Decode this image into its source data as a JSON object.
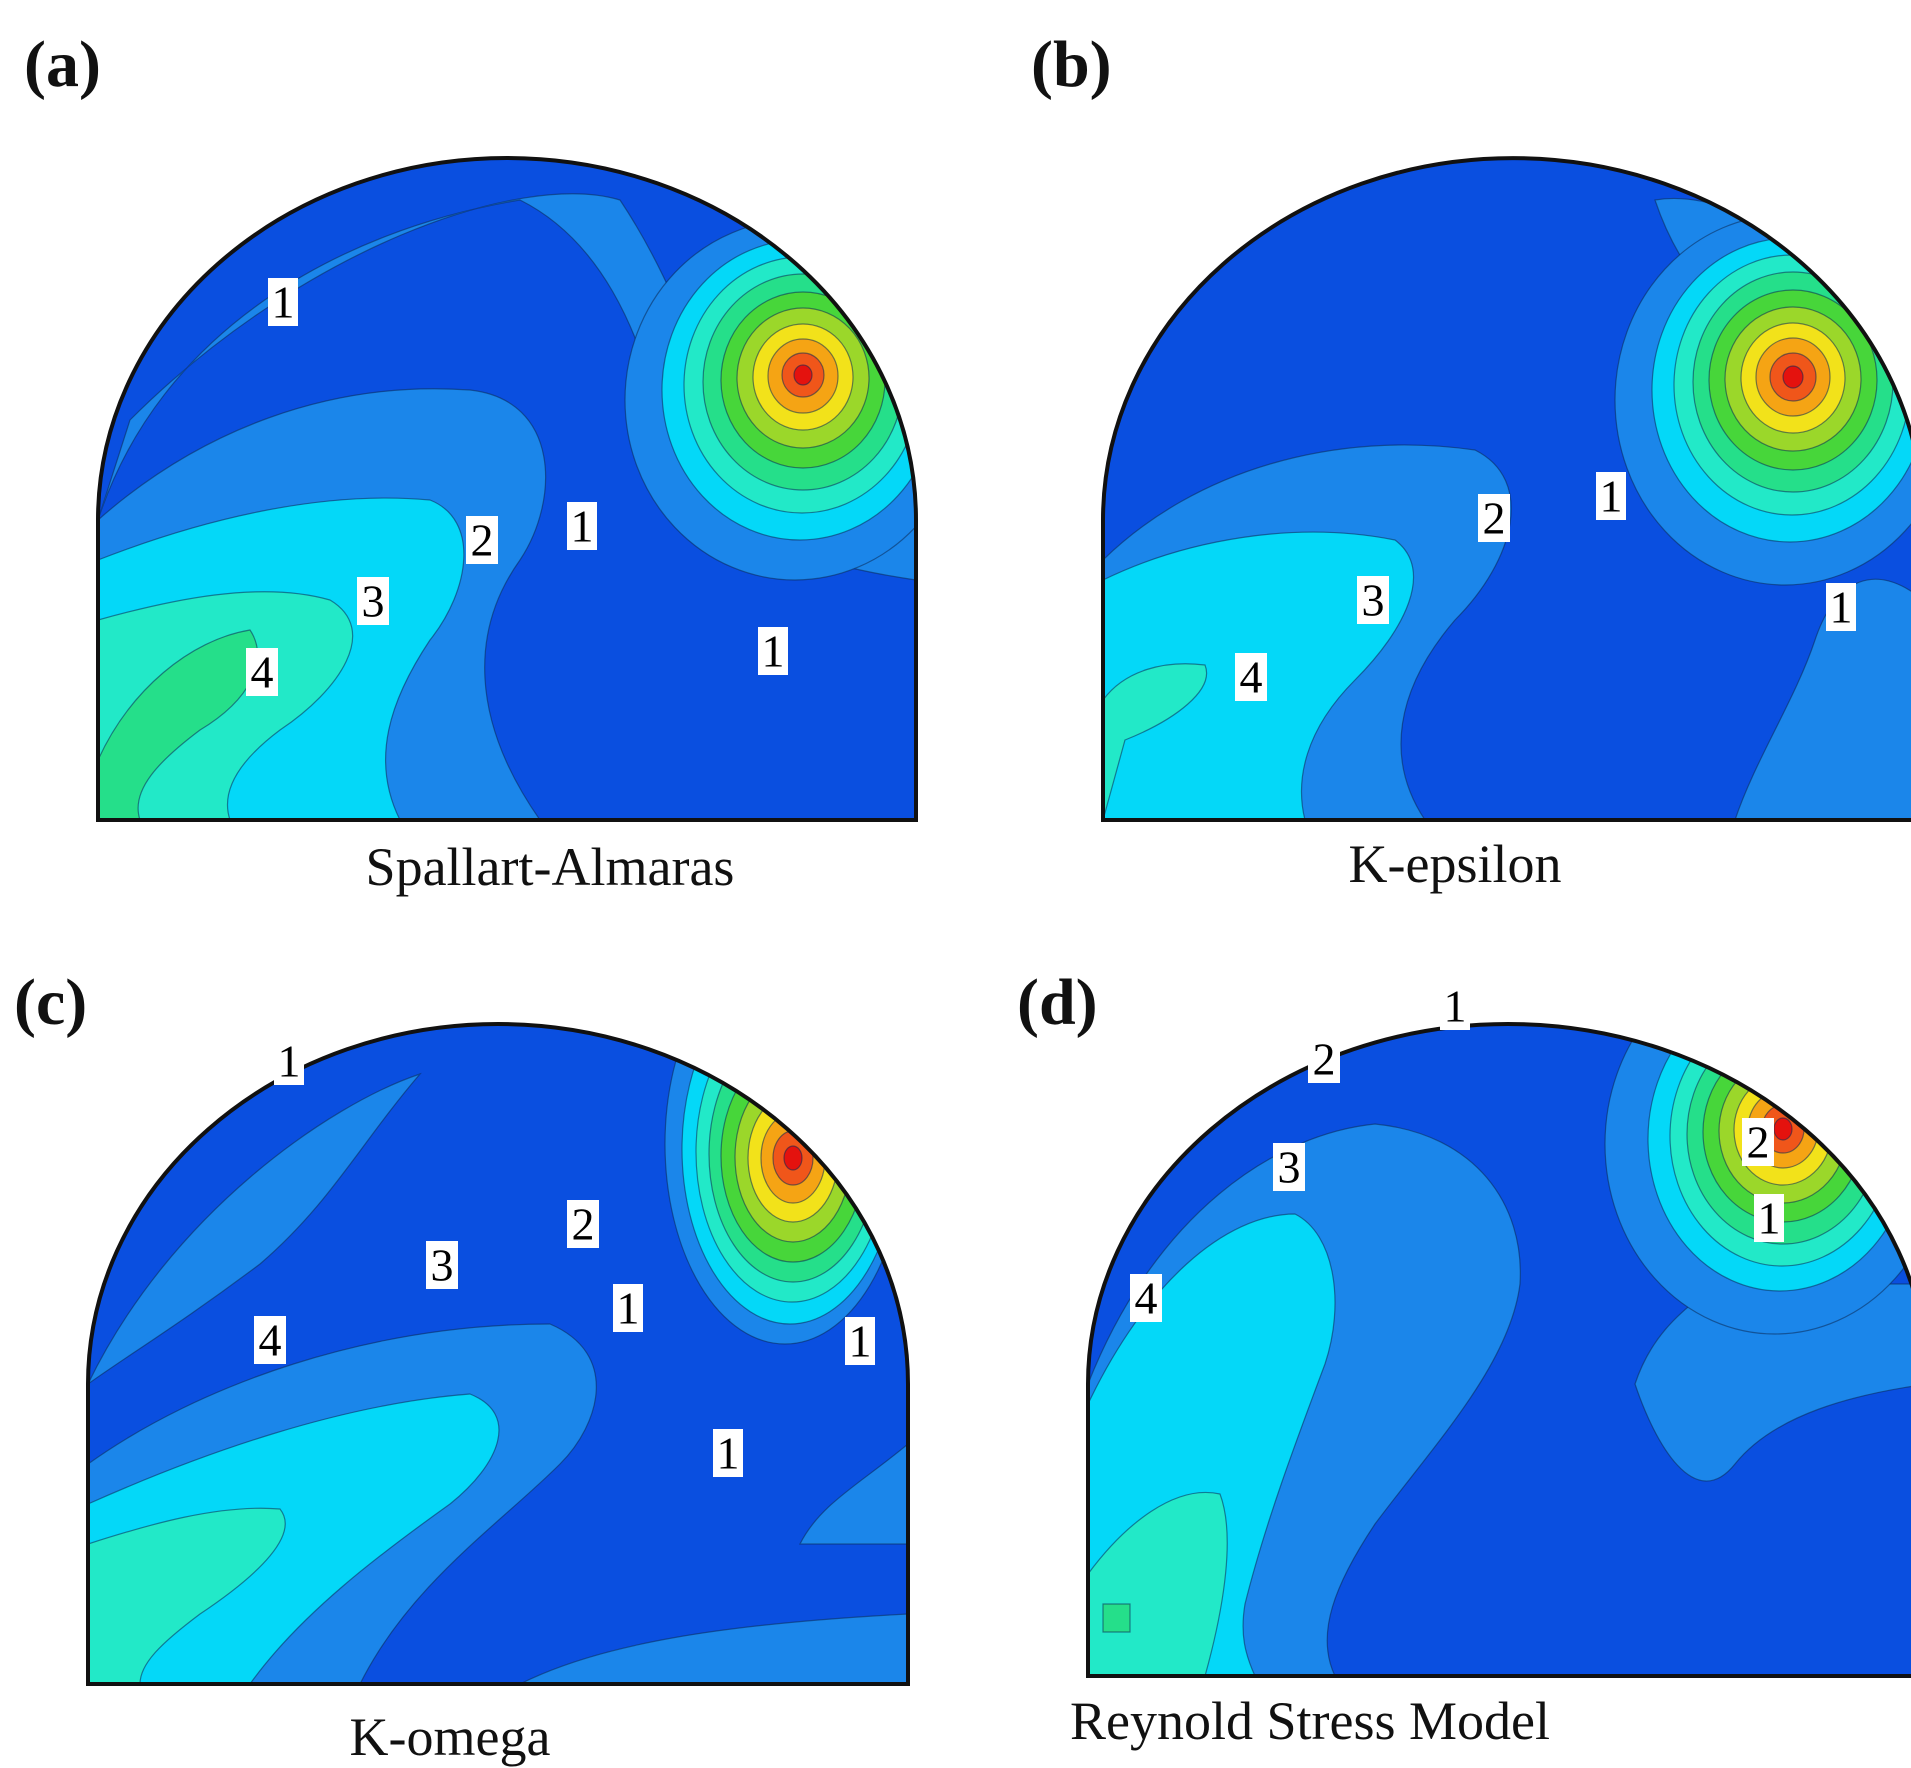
{
  "palette": {
    "level0": "#0a4fe0",
    "level1": "#1b86ea",
    "level2": "#04d8f8",
    "level3": "#22e9c8",
    "level4": "#25df8a",
    "hot1": "#47d63a",
    "hot2": "#9bd72a",
    "hot3": "#f2e21a",
    "hot4": "#f5a414",
    "hot5": "#f0561a",
    "hot6": "#e4120e",
    "outline": "#111111"
  },
  "panels": [
    {
      "letter": "(a)",
      "caption": "Spallart-Almaras",
      "labels": [
        "1",
        "2",
        "1",
        "3",
        "4",
        "1"
      ]
    },
    {
      "letter": "(b)",
      "caption": "K-epsilon",
      "labels": [
        "2",
        "1",
        "3",
        "1",
        "4"
      ]
    },
    {
      "letter": "(c)",
      "caption": "K-omega",
      "labels": [
        "1",
        "2",
        "3",
        "1",
        "4",
        "1",
        "1"
      ]
    },
    {
      "letter": "(d)",
      "caption": "Reynold Stress Model",
      "labels": [
        "1",
        "2",
        "3",
        "2",
        "1",
        "4"
      ]
    }
  ]
}
